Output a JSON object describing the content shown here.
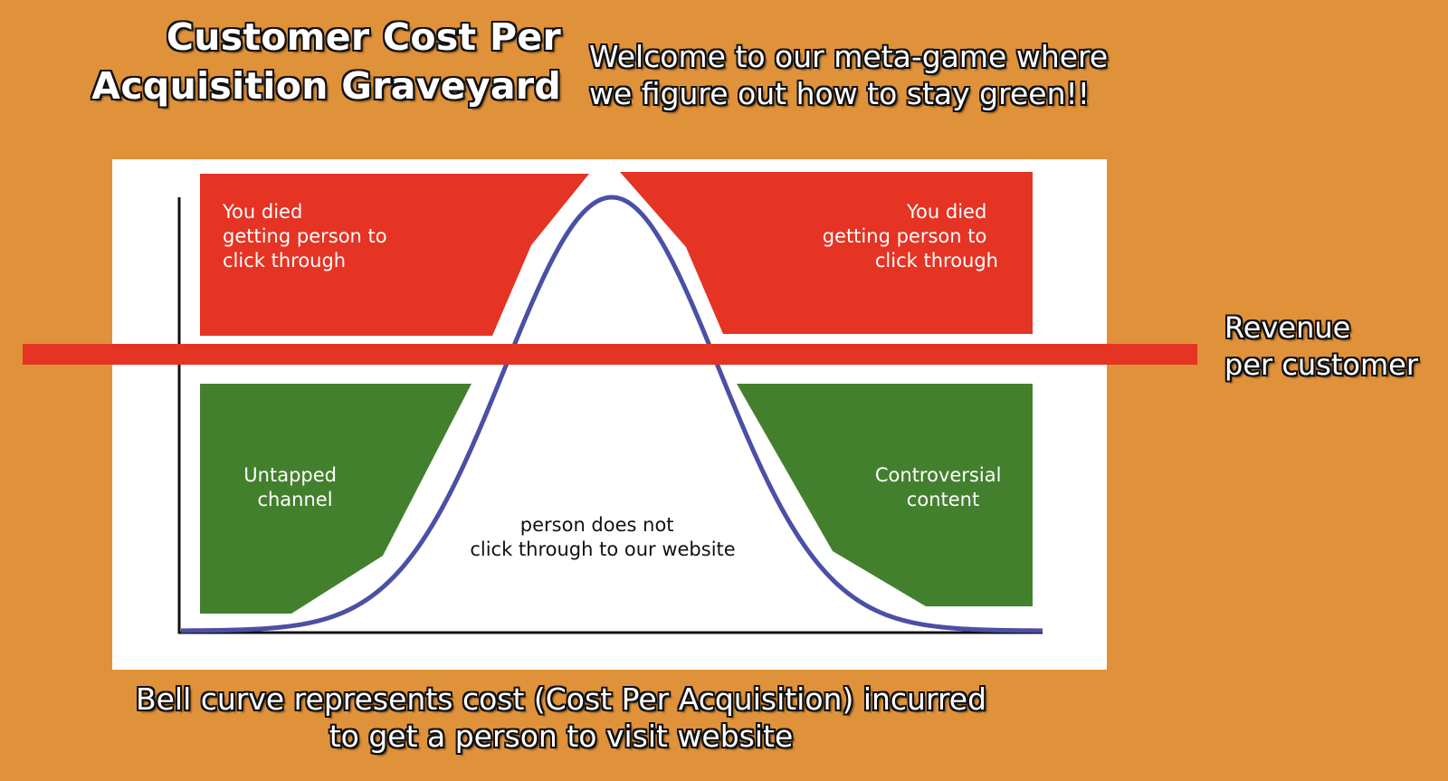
{
  "title": "Customer Cost Per\nAcquisition Graveyard",
  "subtitle": "Welcome to our meta-game where\nwe figure out how to stay green!!",
  "caption": "Bell curve represents cost (Cost Per Acquisition) incurred\nto get a person to visit website",
  "revenue_label": "Revenue\nper customer",
  "zones": {
    "top_left": [
      "You died",
      "getting person to",
      "click through"
    ],
    "top_right": [
      "You died",
      "getting person to",
      "click through"
    ],
    "bottom_left": [
      "Untapped",
      "channel"
    ],
    "bottom_right": [
      "Controversial",
      "content"
    ],
    "center": [
      "person does not",
      "click through to our website"
    ]
  },
  "colors": {
    "background": "#E0923A",
    "loss_zone": "#E53324",
    "profit_zone": "#43802E",
    "revenue_line": "#E53324",
    "curve": "#4B4FA6"
  }
}
